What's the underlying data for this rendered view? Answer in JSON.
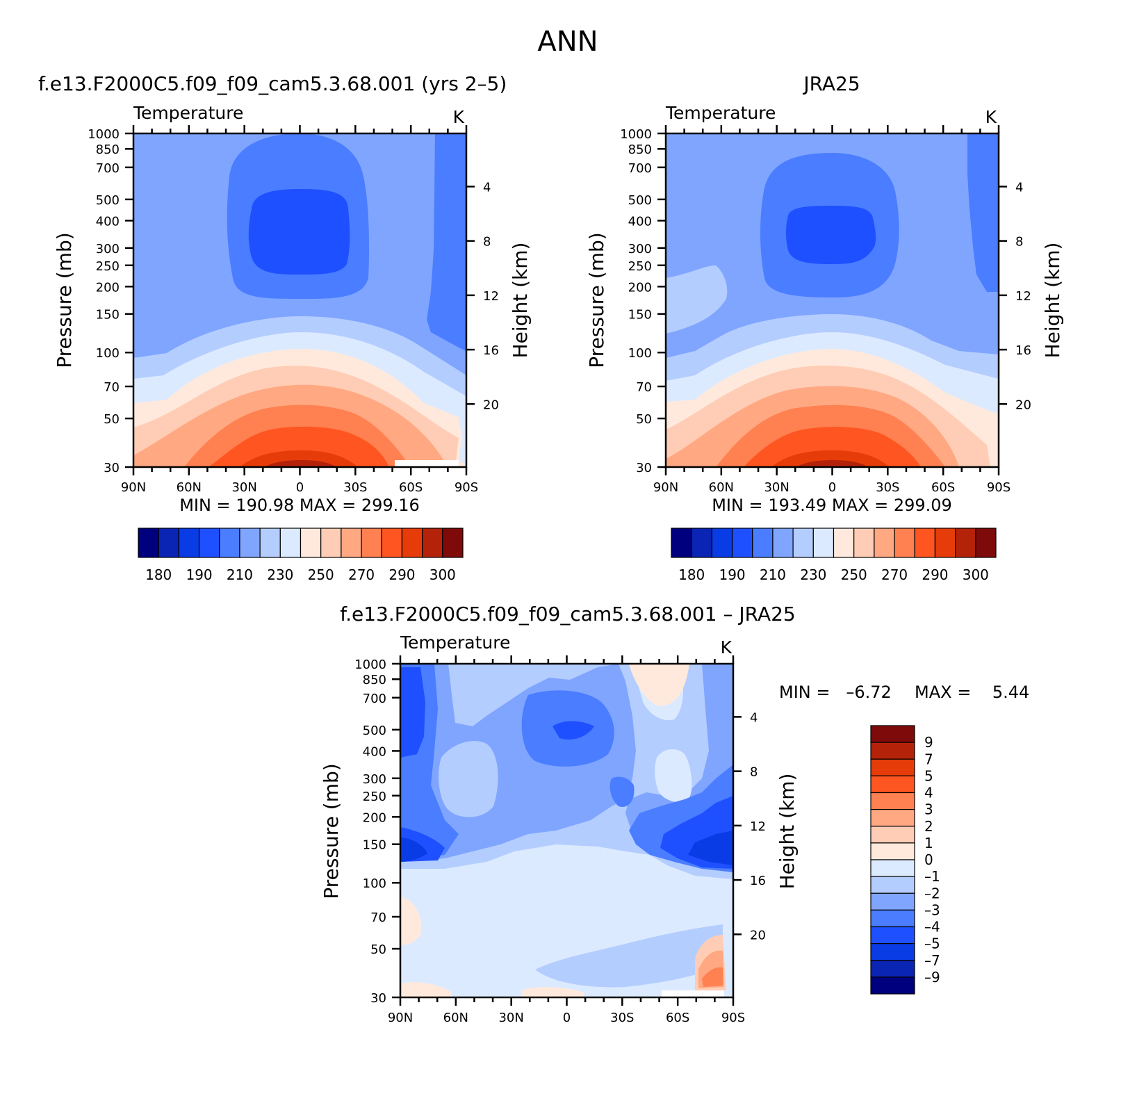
{
  "figure": {
    "title": "ANN"
  },
  "chart_data": [
    {
      "id": "model",
      "type": "contour",
      "title": "f.e13.F2000C5.f09_f09_cam5.3.68.001 (yrs 2–5)",
      "subtitle_left": "Temperature",
      "subtitle_right": "K",
      "xlabel": "",
      "ylabel": "Pressure (mb)",
      "ylabel_right": "Height (km)",
      "x_ticks": [
        "90N",
        "60N",
        "30N",
        "0",
        "30S",
        "60S",
        "90S"
      ],
      "x_values": [
        90,
        60,
        30,
        0,
        -30,
        -60,
        -90
      ],
      "y_ticks": [
        30,
        50,
        70,
        100,
        150,
        200,
        250,
        300,
        400,
        500,
        700,
        850,
        1000
      ],
      "y_right_ticks": [
        20,
        16,
        12,
        8,
        4
      ],
      "ylim": [
        1000,
        30
      ],
      "stats": "MIN = 190.98   MAX = 299.16",
      "min": 190.98,
      "max": 299.16,
      "colorbar": {
        "orientation": "horizontal",
        "tick_labels": [
          "180",
          "190",
          "210",
          "230",
          "250",
          "270",
          "290",
          "300"
        ],
        "colors": [
          "#00007f",
          "#0a24b4",
          "#0a3ce6",
          "#1e50ff",
          "#4a7dff",
          "#7fa5ff",
          "#b4cdff",
          "#dceaff",
          "#ffe9dc",
          "#ffcdb5",
          "#ffa882",
          "#ff8050",
          "#ff5521",
          "#e63c0a",
          "#b4220a",
          "#7f0a0a"
        ]
      }
    },
    {
      "id": "obs",
      "type": "contour",
      "title": "JRA25",
      "subtitle_left": "Temperature",
      "subtitle_right": "K",
      "ylabel": "Pressure (mb)",
      "ylabel_right": "Height (km)",
      "x_ticks": [
        "90N",
        "60N",
        "30N",
        "0",
        "30S",
        "60S",
        "90S"
      ],
      "y_ticks": [
        30,
        50,
        70,
        100,
        150,
        200,
        250,
        300,
        400,
        500,
        700,
        850,
        1000
      ],
      "y_right_ticks": [
        20,
        16,
        12,
        8,
        4
      ],
      "ylim": [
        1000,
        30
      ],
      "stats": "MIN = 193.49   MAX = 299.09",
      "min": 193.49,
      "max": 299.09,
      "colorbar": {
        "orientation": "horizontal",
        "tick_labels": [
          "180",
          "190",
          "210",
          "230",
          "250",
          "270",
          "290",
          "300"
        ]
      }
    },
    {
      "id": "diff",
      "type": "contour",
      "title": "f.e13.F2000C5.f09_f09_cam5.3.68.001 – JRA25",
      "subtitle_left": "Temperature",
      "subtitle_right": "K",
      "ylabel": "Pressure (mb)",
      "ylabel_right": "Height (km)",
      "x_ticks": [
        "90N",
        "60N",
        "30N",
        "0",
        "30S",
        "60S",
        "90S"
      ],
      "y_ticks": [
        30,
        50,
        70,
        100,
        150,
        200,
        250,
        300,
        400,
        500,
        700,
        850,
        1000
      ],
      "y_right_ticks": [
        20,
        16,
        12,
        8,
        4
      ],
      "ylim": [
        1000,
        30
      ],
      "stats_min": "MIN =   –6.72",
      "stats_max": "MAX =    5.44",
      "min": -6.72,
      "max": 5.44,
      "colorbar": {
        "orientation": "vertical",
        "tick_labels": [
          "9",
          "7",
          "5",
          "4",
          "3",
          "2",
          "1",
          "0",
          "–1",
          "–2",
          "–3",
          "–4",
          "–5",
          "–7",
          "–9"
        ],
        "colors": [
          "#7f0a0a",
          "#b4220a",
          "#e63c0a",
          "#ff5521",
          "#ff8050",
          "#ffa882",
          "#ffcdb5",
          "#ffe9dc",
          "#dceaff",
          "#b4cdff",
          "#7fa5ff",
          "#4a7dff",
          "#1e50ff",
          "#0a3ce6",
          "#0a24b4",
          "#00007f"
        ]
      }
    }
  ]
}
